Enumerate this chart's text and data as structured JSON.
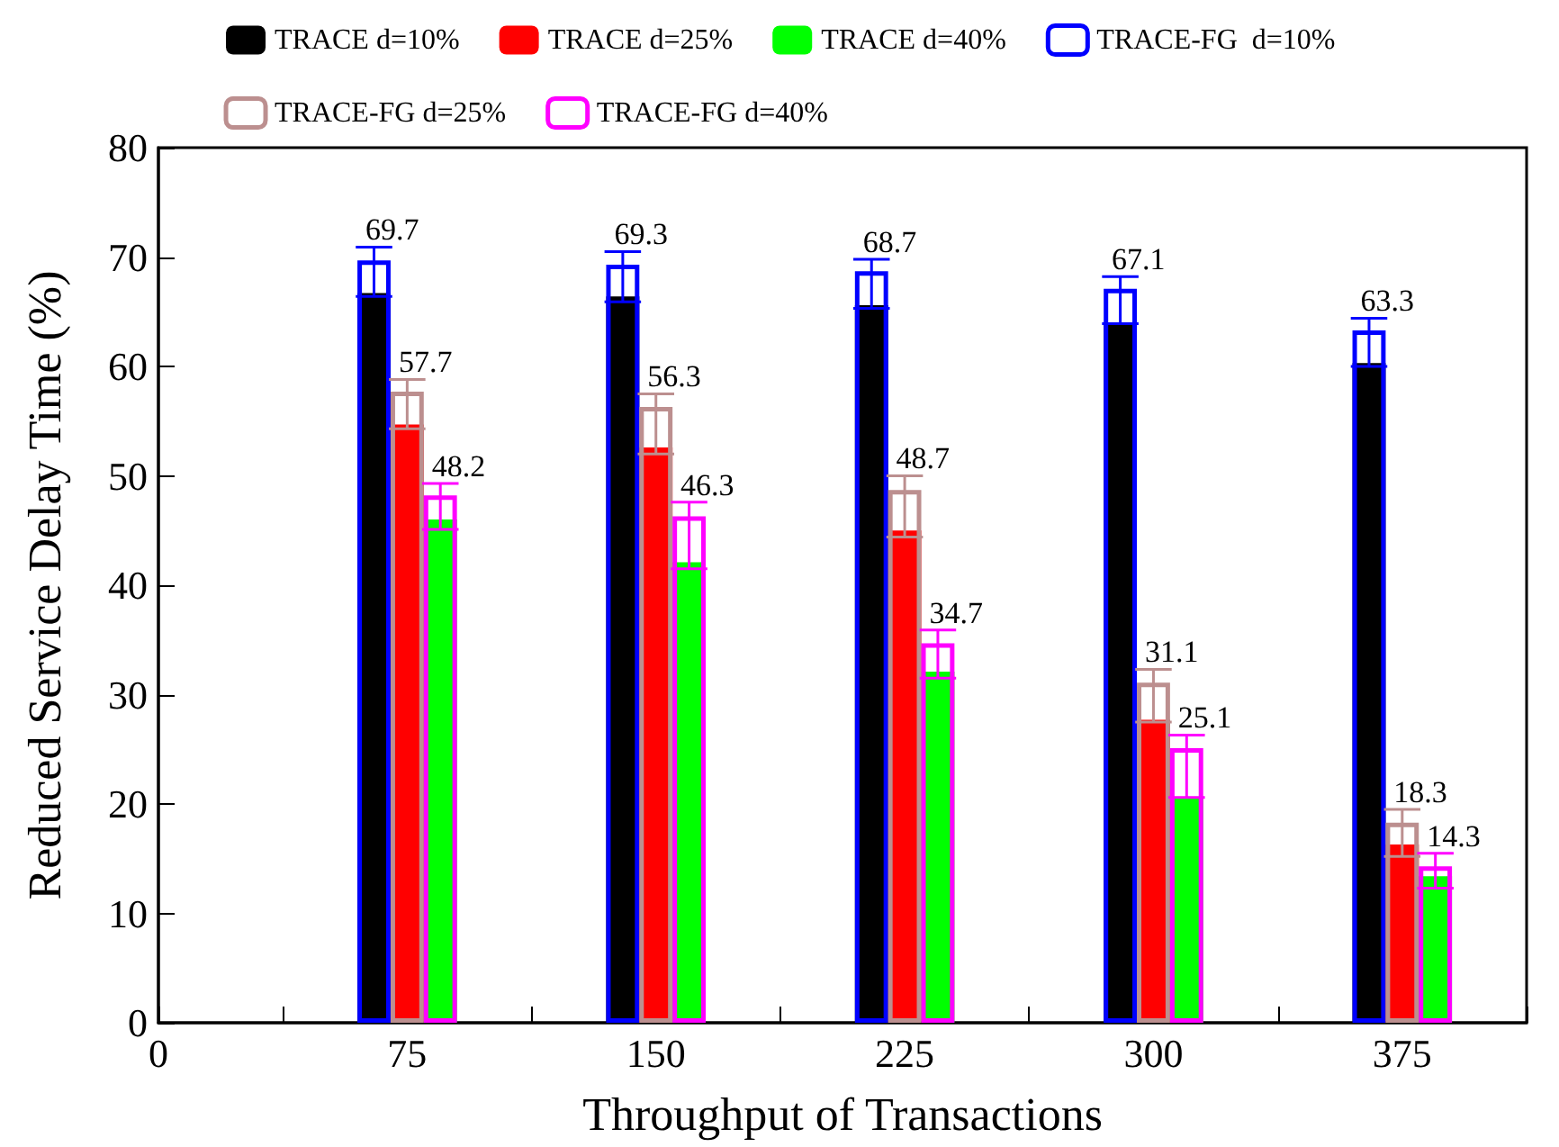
{
  "chart_data": {
    "type": "bar",
    "xlabel": "Throughput of Transactions",
    "ylabel": "Reduced Service Delay Time (%)",
    "xlim": [
      0,
      412.5
    ],
    "xticks": [
      0,
      {
        "value": 37.5,
        "label": null
      },
      75,
      {
        "value": 112.5,
        "label": null
      },
      150,
      {
        "value": 187.5,
        "label": null
      },
      225,
      {
        "value": 262.5,
        "label": null
      },
      300,
      {
        "value": 337.5,
        "label": null
      },
      375,
      {
        "value": 412.5,
        "label": null
      }
    ],
    "ylim": [
      0,
      80
    ],
    "yticks": [
      0,
      10,
      20,
      30,
      40,
      50,
      60,
      70,
      80
    ],
    "grid": false,
    "legend": "top",
    "series": [
      {
        "name": "TRACE d=10%",
        "color": "#000000",
        "x": [
          65,
          140,
          215,
          290,
          365
        ],
        "values": [
          66.7,
          66.4,
          65.6,
          63.9,
          60.3
        ]
      },
      {
        "name": "TRACE d=25%",
        "color": "#ff0000",
        "x": [
          75,
          150,
          225,
          300,
          375
        ],
        "values": [
          54.7,
          52.6,
          45.0,
          27.7,
          16.3
        ]
      },
      {
        "name": "TRACE d=40%",
        "color": "#00ff00",
        "x": [
          85,
          160,
          235,
          310,
          385
        ],
        "values": [
          46.0,
          42.1,
          32.1,
          20.6,
          13.4
        ]
      },
      {
        "name": "TRACE-FG  d=10%",
        "color": "#0000ff",
        "x": [
          65,
          140,
          215,
          290,
          365
        ],
        "values": [
          69.7,
          69.3,
          68.7,
          67.1,
          63.3
        ],
        "value_labels": [
          "69.7",
          "69.3",
          "68.7",
          "67.1",
          "63.3"
        ],
        "errors": [
          [
            66.4,
            70.9
          ],
          [
            65.9,
            70.5
          ],
          [
            65.3,
            69.8
          ],
          [
            63.9,
            68.2
          ],
          [
            60.0,
            64.4
          ]
        ]
      },
      {
        "name": "TRACE-FG d=25%",
        "color": "#bc8f8f",
        "x": [
          75,
          150,
          225,
          300,
          375
        ],
        "values": [
          57.7,
          56.3,
          48.7,
          31.1,
          18.3
        ],
        "value_labels": [
          "57.7",
          "56.3",
          "48.7",
          "31.1",
          "18.3"
        ],
        "errors": [
          [
            54.3,
            58.8
          ],
          [
            52.0,
            57.5
          ],
          [
            44.4,
            50.0
          ],
          [
            27.5,
            32.3
          ],
          [
            15.2,
            19.5
          ]
        ]
      },
      {
        "name": "TRACE-FG d=40%",
        "color": "#ff00ff",
        "x": [
          85,
          160,
          235,
          310,
          385
        ],
        "values": [
          48.2,
          46.3,
          34.7,
          25.1,
          14.3
        ],
        "value_labels": [
          "48.2",
          "46.3",
          "34.7",
          "25.1",
          "14.3"
        ],
        "errors": [
          [
            45.1,
            49.3
          ],
          [
            41.5,
            47.6
          ],
          [
            31.5,
            35.9
          ],
          [
            20.6,
            26.3
          ],
          [
            12.3,
            15.5
          ]
        ]
      }
    ]
  }
}
